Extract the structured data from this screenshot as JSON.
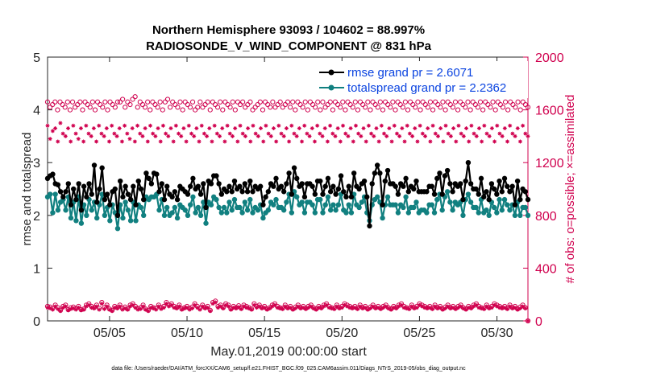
{
  "chart_data": {
    "type": "line",
    "title_line1": "Northern Hemisphere 93093 / 104602 = 88.997%",
    "title_line2": "RADIOSONDE_V_WIND_COMPONENT @ 831 hPa",
    "ylabel": "rmse and totalspread",
    "ylabel_right": "# of obs: o=possible; ×=assimilated",
    "xlabel": "May.01,2019 00:00:00 start",
    "footnote": "data file: /Users/raeder/DAI/ATM_forcXX/CAM6_setup/f.e21.FHIST_BGC.f09_025.CAM6assim.011/Diags_NTrS_2019-05/obs_diag_output.nc",
    "xlim": [
      1,
      32
    ],
    "ylim": [
      0,
      5
    ],
    "ylim_right": [
      0,
      2000
    ],
    "yticks": [
      "0",
      "1",
      "2",
      "3",
      "4",
      "5"
    ],
    "yticks_right": [
      "0",
      "400",
      "800",
      "1200",
      "1600",
      "2000"
    ],
    "xticks": [
      {
        "x": 5,
        "label": "05/05"
      },
      {
        "x": 10,
        "label": "05/10"
      },
      {
        "x": 15,
        "label": "05/15"
      },
      {
        "x": 20,
        "label": "05/20"
      },
      {
        "x": 25,
        "label": "05/25"
      },
      {
        "x": 30,
        "label": "05/30"
      }
    ],
    "legend": {
      "position": "top-right",
      "rmse_label": "rmse grand pr = 2.6071",
      "spread_label": "totalspread grand pr = 2.2362"
    },
    "colors": {
      "rmse": "#000000",
      "spread": "#118080",
      "obs": "#d0004e",
      "legend_text": "#0b44e0"
    },
    "series": [
      {
        "name": "rmse",
        "axis": "left",
        "values": [
          2.7,
          2.75,
          2.78,
          2.6,
          2.58,
          2.45,
          2.35,
          2.45,
          2.6,
          2.2,
          2.5,
          2.3,
          2.6,
          2.1,
          2.55,
          2.35,
          2.6,
          2.4,
          2.95,
          2.25,
          2.5,
          2.9,
          2.3,
          2.4,
          2.2,
          2.45,
          2.5,
          2.0,
          2.65,
          2.35,
          2.55,
          2.4,
          2.3,
          2.55,
          2.2,
          2.65,
          2.5,
          2.3,
          2.8,
          2.7,
          2.6,
          2.8,
          2.78,
          2.45,
          2.6,
          2.3,
          2.55,
          2.4,
          2.35,
          2.45,
          2.3,
          2.55,
          2.5,
          2.45,
          2.4,
          2.55,
          2.7,
          2.5,
          2.55,
          2.4,
          2.6,
          2.15,
          2.65,
          2.6,
          2.75,
          2.75,
          2.6,
          2.4,
          2.5,
          2.45,
          2.55,
          2.45,
          2.65,
          2.5,
          2.55,
          2.45,
          2.6,
          2.45,
          2.65,
          2.45,
          2.55,
          2.5,
          2.55,
          2.2,
          2.35,
          2.45,
          2.6,
          2.55,
          2.7,
          2.5,
          2.55,
          2.45,
          2.6,
          2.8,
          2.4,
          2.9,
          2.7,
          2.55,
          2.6,
          2.35,
          2.6,
          2.6,
          2.55,
          2.4,
          2.65,
          2.65,
          2.4,
          2.55,
          2.7,
          2.45,
          2.55,
          2.4,
          2.5,
          2.75,
          2.45,
          2.35,
          2.55,
          2.35,
          2.8,
          2.55,
          2.5,
          2.6,
          2.65,
          2.35,
          1.8,
          2.6,
          2.8,
          2.95,
          2.8,
          2.2,
          2.65,
          2.85,
          2.6,
          2.6,
          2.55,
          2.4,
          2.6,
          2.55,
          2.7,
          2.45,
          2.55,
          2.5,
          2.65,
          2.45,
          2.45,
          2.45,
          2.45,
          2.55,
          2.55,
          2.4,
          2.7,
          2.8,
          2.4,
          2.75,
          2.85,
          2.6,
          2.45,
          2.6,
          2.55,
          2.6,
          2.3,
          2.65,
          3.0,
          2.6,
          2.5,
          2.5,
          2.4,
          2.7,
          2.35,
          2.45,
          2.3,
          2.6,
          2.5,
          2.4,
          2.65,
          2.45,
          2.7,
          2.55,
          2.45,
          2.55,
          2.2,
          2.65,
          2.3,
          2.5,
          2.45,
          2.3
        ]
      },
      {
        "name": "totalspread",
        "axis": "left",
        "values": [
          2.35,
          2.4,
          2.05,
          2.4,
          2.1,
          2.25,
          2.3,
          2.1,
          2.35,
          1.95,
          2.25,
          1.9,
          2.35,
          1.85,
          2.2,
          2.0,
          2.3,
          2.1,
          2.25,
          1.95,
          2.2,
          2.4,
          2.0,
          2.15,
          1.9,
          2.2,
          2.05,
          1.75,
          2.2,
          1.95,
          2.25,
          2.1,
          1.9,
          2.25,
          1.9,
          2.2,
          2.15,
          2.0,
          2.35,
          2.3,
          2.35,
          2.35,
          2.4,
          2.1,
          2.3,
          2.0,
          2.15,
          2.0,
          2.05,
          2.15,
          1.95,
          2.2,
          2.15,
          2.1,
          2.0,
          2.2,
          2.35,
          2.05,
          2.15,
          2.0,
          2.25,
          1.85,
          2.25,
          2.2,
          2.35,
          2.3,
          2.15,
          2.05,
          2.15,
          2.05,
          2.25,
          2.1,
          2.3,
          2.15,
          2.15,
          2.05,
          2.25,
          2.1,
          2.3,
          2.05,
          2.15,
          2.1,
          2.2,
          1.95,
          2.05,
          2.1,
          2.25,
          2.2,
          2.3,
          2.15,
          2.15,
          2.1,
          2.25,
          2.4,
          2.05,
          2.45,
          2.35,
          2.2,
          2.25,
          2.05,
          2.25,
          2.25,
          2.2,
          2.05,
          2.3,
          2.3,
          2.05,
          2.2,
          2.35,
          2.1,
          2.2,
          2.1,
          2.2,
          2.4,
          2.1,
          2.05,
          2.2,
          2.05,
          2.4,
          2.2,
          2.15,
          2.25,
          2.35,
          2.05,
          1.9,
          2.2,
          2.3,
          2.35,
          2.25,
          1.95,
          2.2,
          2.35,
          2.2,
          2.2,
          2.2,
          2.05,
          2.2,
          2.15,
          2.35,
          2.05,
          2.15,
          2.15,
          2.25,
          2.05,
          2.1,
          2.1,
          2.05,
          2.2,
          2.2,
          2.05,
          2.3,
          2.4,
          2.1,
          2.35,
          2.45,
          2.25,
          2.1,
          2.25,
          2.2,
          2.25,
          2.0,
          2.3,
          2.4,
          2.25,
          2.15,
          2.15,
          2.05,
          2.3,
          2.05,
          2.1,
          2.0,
          2.25,
          2.15,
          2.05,
          2.3,
          2.1,
          2.3,
          2.2,
          2.1,
          2.2,
          2.0,
          2.25,
          2.0,
          2.15,
          2.15,
          2.0
        ]
      },
      {
        "name": "possible",
        "axis": "right",
        "marker": "o",
        "values": [
          1660,
          1620,
          1640,
          1660,
          1600,
          1660,
          1640,
          1620,
          1660,
          1600,
          1660,
          1620,
          1640,
          1660,
          1600,
          1660,
          1640,
          1620,
          1660,
          1600,
          1660,
          1640,
          1620,
          1660,
          1600,
          1660,
          1640,
          1620,
          1660,
          1660,
          1680,
          1620,
          1660,
          1640,
          1680,
          1700,
          1620,
          1660,
          1640,
          1620,
          1660,
          1600,
          1660,
          1640,
          1620,
          1660,
          1600,
          1660,
          1680,
          1620,
          1660,
          1640,
          1620,
          1660,
          1600,
          1660,
          1640,
          1620,
          1660,
          1600,
          1620,
          1660,
          1620,
          1640,
          1660,
          1600,
          1660,
          1640,
          1620,
          1660,
          1600,
          1660,
          1640,
          1620,
          1660,
          1600,
          1660,
          1640,
          1660,
          1620,
          1640,
          1660,
          1600,
          1620,
          1640,
          1660,
          1600,
          1660,
          1640,
          1620,
          1660,
          1620,
          1640,
          1660,
          1620,
          1640,
          1660,
          1620,
          1660,
          1600,
          1660,
          1640,
          1620,
          1660,
          1600,
          1660,
          1640,
          1620,
          1660,
          1600,
          1660,
          1620,
          1640,
          1660,
          1600,
          1660,
          1640,
          1620,
          1660,
          1600,
          1660,
          1640,
          1620,
          1660,
          1600,
          1660,
          1640,
          1620,
          1660,
          1600,
          1660,
          1640,
          1620,
          1660,
          1600,
          1660,
          1640,
          1620,
          1660,
          1600,
          1660,
          1640,
          1620,
          1660,
          1600,
          1660,
          1640,
          1620,
          1660,
          1600,
          1660,
          1640,
          1620,
          1660,
          1600,
          1660,
          1640,
          1620,
          1660,
          1600,
          1660,
          1640,
          1620,
          1660,
          1600,
          1660,
          1640,
          1620,
          1660,
          1600,
          1660,
          1640,
          1620,
          1660,
          1600,
          1660,
          1640,
          1620,
          1660,
          1600,
          1660,
          1640,
          1620,
          1660,
          1600,
          1660,
          1640,
          1620,
          1660,
          1600,
          1660,
          1640,
          1620
        ]
      },
      {
        "name": "assimilated",
        "axis": "right",
        "marker": "*",
        "values": [
          1480,
          1380,
          1440,
          1460,
          1360,
          1500,
          1420,
          1400,
          1460,
          1360,
          1480,
          1420,
          1380,
          1460,
          1360,
          1480,
          1420,
          1400,
          1460,
          1360,
          1480,
          1420,
          1400,
          1460,
          1360,
          1480,
          1420,
          1400,
          1460,
          1360,
          1480,
          1420,
          1380,
          1460,
          1360,
          1480,
          1420,
          1400,
          1460,
          1360,
          1480,
          1420,
          1400,
          1460,
          1360,
          1480,
          1420,
          1400,
          1460,
          1360,
          1480,
          1420,
          1400,
          1460,
          1360,
          1480,
          1420,
          1400,
          1460,
          1360,
          1480,
          1420,
          1400,
          1460,
          1360,
          1480,
          1420,
          1400,
          1460,
          1360,
          1480,
          1420,
          1400,
          1460,
          1360,
          1480,
          1420,
          1400,
          1460,
          1360,
          1480,
          1420,
          1400,
          1460,
          1360,
          1480,
          1420,
          1400,
          1460,
          1360,
          1480,
          1420,
          1400,
          1460,
          1360,
          1480,
          1420,
          1400,
          1460,
          1360,
          1480,
          1420,
          1400,
          1460,
          1360,
          1480,
          1420,
          1400,
          1460,
          1360,
          1480,
          1420,
          1400,
          1460,
          1360,
          1480,
          1420,
          1400,
          1460,
          1360,
          1480,
          1420,
          1400,
          1460,
          1360,
          1480,
          1420,
          1400,
          1460,
          1360,
          1480,
          1420,
          1400,
          1460,
          1360,
          1480,
          1420,
          1400,
          1460,
          1360,
          1480,
          1420,
          1400,
          1460,
          1360,
          1480,
          1420,
          1400,
          1460,
          1360,
          1480,
          1420,
          1400,
          1460,
          1360,
          1480,
          1420,
          1400,
          1460,
          1360,
          1480,
          1420,
          1400,
          1460,
          1360,
          1480,
          1420,
          1400,
          1460,
          1360,
          1480,
          1420,
          1400,
          1460,
          1360,
          1480,
          1420,
          1400,
          1460,
          1360,
          1480,
          1420,
          1400,
          1460,
          1360,
          1480,
          1420,
          1400
        ]
      },
      {
        "name": "possible_low",
        "axis": "right",
        "marker": "o",
        "values": [
          110,
          105,
          95,
          120,
          100,
          80,
          110,
          120,
          85,
          100,
          105,
          95,
          110,
          85,
          90,
          120,
          130,
          110,
          100,
          120,
          95,
          140,
          100,
          120,
          90,
          80,
          110,
          100,
          120,
          95,
          105,
          90,
          120,
          130,
          110,
          95,
          100,
          120,
          90,
          80,
          110,
          100,
          95,
          120,
          100,
          110,
          140,
          120,
          130,
          110,
          100,
          120,
          90,
          100,
          110,
          95,
          105,
          130,
          110,
          95,
          120,
          100,
          110,
          80,
          140,
          150,
          110,
          120,
          100,
          130,
          120,
          90,
          110,
          100,
          115,
          95,
          120,
          110,
          100,
          90,
          130,
          110,
          120,
          100,
          110,
          90,
          100,
          120,
          130,
          110,
          100,
          95,
          120,
          100,
          110,
          90,
          105,
          120,
          100,
          110,
          95,
          110,
          120,
          100,
          90,
          110,
          100,
          120,
          130,
          110,
          100,
          95,
          120,
          100,
          110,
          130,
          120,
          110,
          100,
          110,
          95,
          120,
          100,
          110,
          90,
          105,
          120,
          100,
          110,
          95,
          110,
          120,
          100,
          90,
          110,
          100,
          120,
          130,
          110,
          100,
          95,
          120,
          100,
          110,
          130,
          120,
          110,
          100,
          110,
          95,
          120,
          100,
          110,
          90,
          105,
          120,
          100,
          110,
          95,
          110,
          120,
          100,
          90,
          110,
          100,
          120,
          130,
          110,
          100,
          95,
          120,
          100,
          110,
          130,
          120,
          110,
          100,
          110,
          95,
          120,
          100,
          110,
          90,
          105,
          120,
          100,
          0
        ]
      },
      {
        "name": "assimilated_low",
        "axis": "right",
        "marker": "*",
        "values": [
          100,
          95,
          85,
          110,
          90,
          75,
          100,
          110,
          80,
          90,
          95,
          85,
          100,
          80,
          85,
          110,
          120,
          100,
          95,
          110,
          85,
          130,
          90,
          110,
          85,
          75,
          100,
          95,
          110,
          85,
          95,
          85,
          110,
          120,
          100,
          85,
          90,
          110,
          85,
          75,
          100,
          95,
          85,
          110,
          90,
          100,
          130,
          110,
          120,
          100,
          95,
          110,
          85,
          95,
          100,
          85,
          95,
          120,
          100,
          85,
          110,
          95,
          100,
          75,
          130,
          140,
          100,
          110,
          95,
          120,
          110,
          85,
          100,
          95,
          105,
          90,
          110,
          100,
          95,
          85,
          120,
          100,
          110,
          95,
          100,
          85,
          95,
          110,
          120,
          100,
          95,
          90,
          110,
          95,
          100,
          85,
          95,
          110,
          95,
          100,
          90,
          100,
          110,
          95,
          85,
          100,
          95,
          110,
          120,
          100,
          95,
          90,
          110,
          95,
          100,
          120,
          110,
          100,
          95,
          100,
          90,
          110,
          95,
          100,
          85,
          95,
          110,
          95,
          100,
          90,
          100,
          110,
          95,
          85,
          100,
          95,
          110,
          120,
          100,
          95,
          90,
          110,
          95,
          100,
          120,
          110,
          100,
          95,
          100,
          90,
          110,
          95,
          100,
          85,
          95,
          110,
          95,
          100,
          90,
          100,
          110,
          95,
          85,
          100,
          95,
          110,
          120,
          100,
          95,
          90,
          110,
          95,
          100,
          120,
          110,
          100,
          95,
          100,
          90,
          110,
          95,
          100,
          85,
          95,
          110,
          95,
          0
        ]
      }
    ]
  }
}
